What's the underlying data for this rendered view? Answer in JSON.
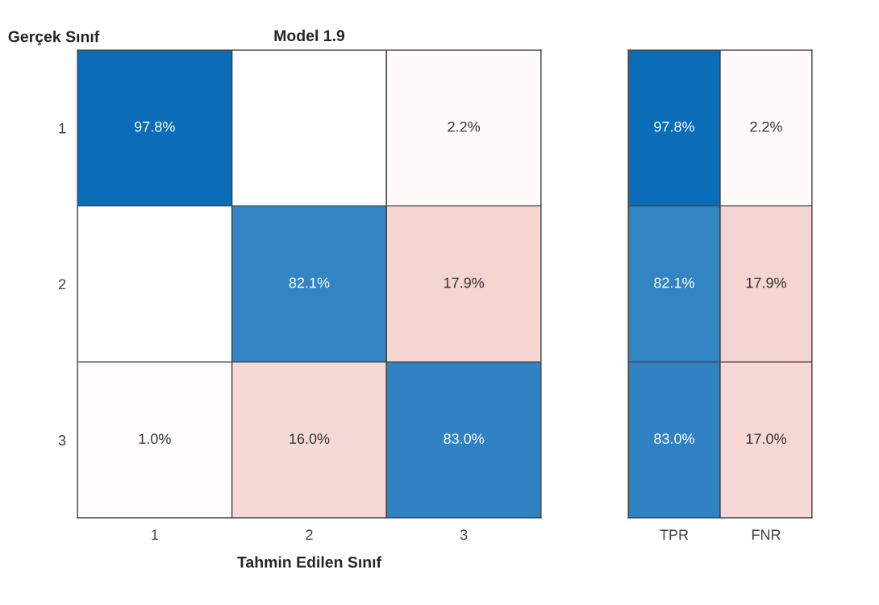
{
  "chart_data": [
    {
      "type": "heatmap",
      "title": "Model 1.9",
      "ylabel": "Gerçek Sınıf",
      "xlabel": "Tahmin Edilen Sınıf",
      "categories": [
        "1",
        "2",
        "3"
      ],
      "y_categories": [
        "1",
        "2",
        "3"
      ],
      "cells": [
        [
          97.8,
          null,
          2.2
        ],
        [
          null,
          82.1,
          17.9
        ],
        [
          1.0,
          16.0,
          83.0
        ]
      ],
      "cell_labels": [
        [
          "97.8%",
          null,
          "2.2%"
        ],
        [
          null,
          "82.1%",
          "17.9%"
        ],
        [
          "1.0%",
          "16.0%",
          "83.0%"
        ]
      ],
      "colors": [
        "#0569b6",
        "#c21400"
      ]
    },
    {
      "type": "heatmap",
      "categories": [
        "TPR",
        "FNR"
      ],
      "y_categories": [
        null,
        null,
        null
      ],
      "cells": [
        [
          97.8,
          2.2
        ],
        [
          82.1,
          17.9
        ],
        [
          83.0,
          17.0
        ]
      ],
      "cell_labels": [
        [
          "97.8%",
          "2.2%"
        ],
        [
          "82.1%",
          "17.9%"
        ],
        [
          "83.0%",
          "17.0%"
        ]
      ],
      "colors": [
        "#0569b6",
        "#c21400"
      ],
      "tick_labels": "x"
    }
  ]
}
